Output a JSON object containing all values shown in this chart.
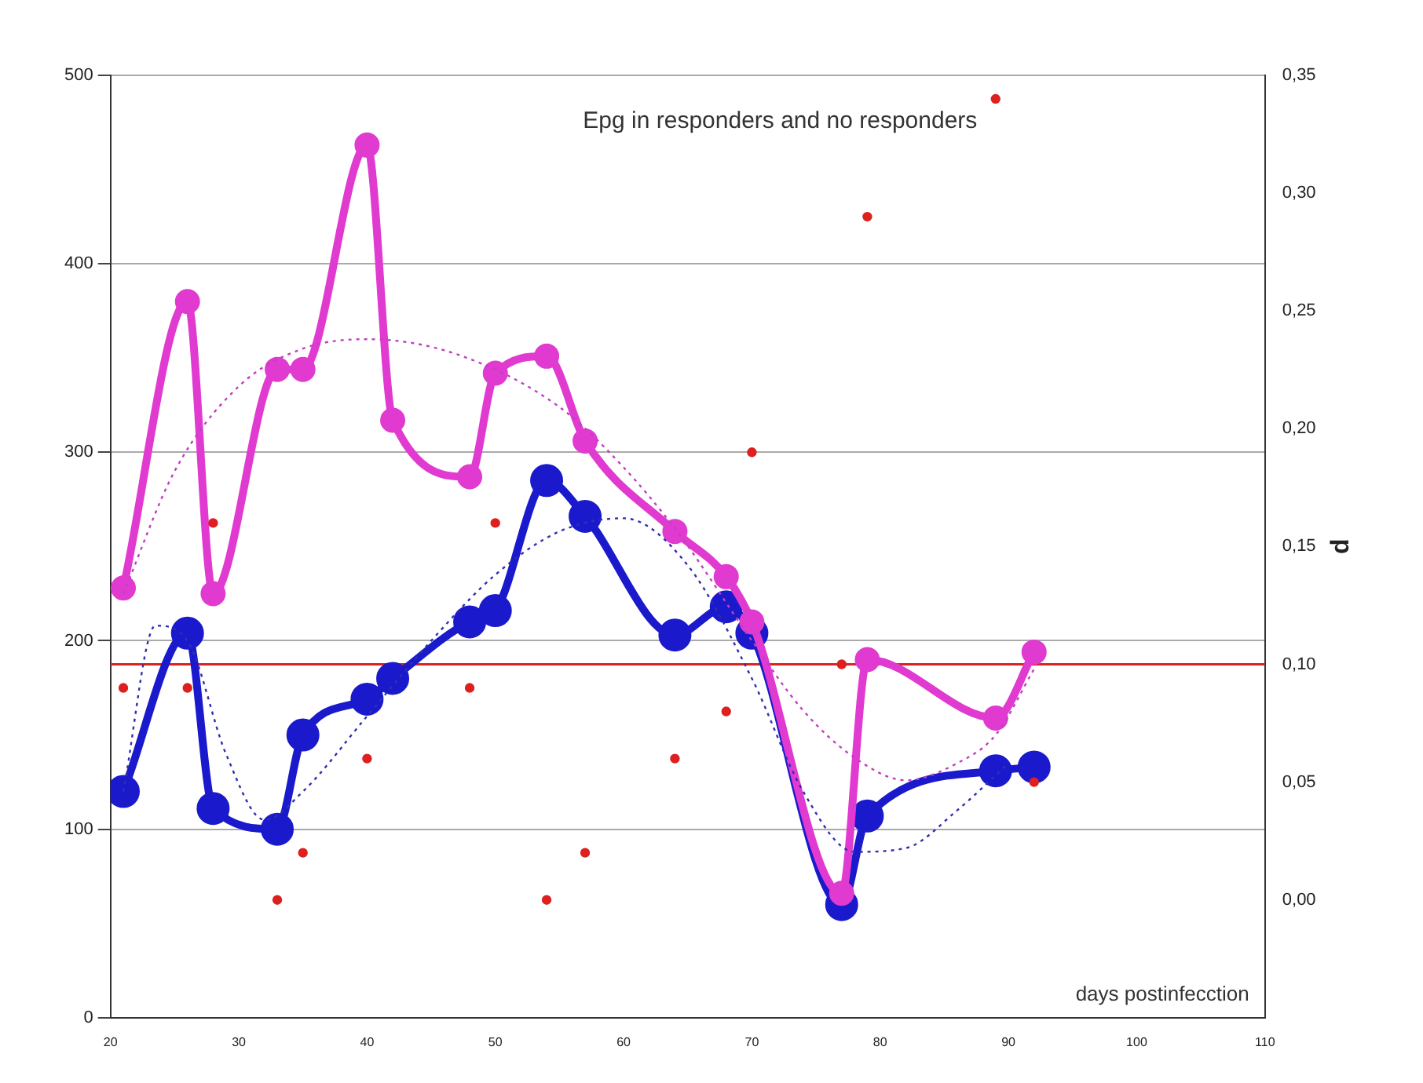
{
  "chart_data": {
    "type": "line",
    "title": "Epg in responders and no responders",
    "y2label": "p",
    "annotations": [
      "days postinfecction"
    ],
    "xlim": [
      20,
      110
    ],
    "xticks": [
      20,
      30,
      40,
      50,
      60,
      70,
      80,
      90,
      100,
      110
    ],
    "ylim": [
      0,
      500
    ],
    "yticks": [
      0,
      100,
      200,
      300,
      400,
      500
    ],
    "y2lim": [
      -0.05,
      0.35
    ],
    "y2ticks": [
      {
        "value": 0,
        "label": "0,00"
      },
      {
        "value": 0.05,
        "label": "0,05"
      },
      {
        "value": 0.1,
        "label": "0,10"
      },
      {
        "value": 0.15,
        "label": "0,15"
      },
      {
        "value": 0.2,
        "label": "0,20"
      },
      {
        "value": 0.25,
        "label": "0,25"
      },
      {
        "value": 0.3,
        "label": "0,30"
      },
      {
        "value": 0.35,
        "label": "0,35"
      }
    ],
    "grid": "y",
    "legend": false,
    "ref_lines": [
      {
        "axis": "y2",
        "value": 0.1,
        "color": "#dd2020"
      }
    ],
    "series": [
      {
        "color": "#1a1acc",
        "marker": "circle",
        "line_style": "solid",
        "x": [
          21,
          26,
          28,
          33,
          35,
          40,
          42,
          48,
          50,
          54,
          57,
          64,
          68,
          70,
          77,
          79,
          89,
          92
        ],
        "values": [
          120,
          204,
          111,
          100,
          150,
          169,
          180,
          210,
          216,
          285,
          266,
          203,
          218,
          204,
          60,
          107,
          131,
          133
        ]
      },
      {
        "color": "#e03ad0",
        "marker": "circle",
        "line_style": "solid",
        "x": [
          21,
          26,
          28,
          33,
          35,
          40,
          42,
          48,
          50,
          54,
          57,
          64,
          68,
          70,
          77,
          79,
          89,
          92
        ],
        "values": [
          228,
          380,
          225,
          344,
          344,
          463,
          317,
          287,
          342,
          351,
          306,
          258,
          234,
          210,
          66,
          190,
          159,
          194
        ]
      },
      {
        "color": "#3030b0",
        "marker": "none",
        "line_style": "dotted",
        "x": [
          21,
          23.5,
          26,
          29,
          32,
          35,
          40,
          45,
          50,
          55,
          60,
          65,
          70,
          74,
          78,
          82,
          86,
          90
        ],
        "values": [
          120,
          208,
          200,
          140,
          105,
          120,
          160,
          200,
          235,
          258,
          265,
          240,
          180,
          120,
          88,
          90,
          110,
          135
        ]
      },
      {
        "color": "#c040c0",
        "marker": "none",
        "line_style": "dotted",
        "x": [
          21,
          25,
          30,
          35,
          40,
          47,
          55,
          60,
          64.5,
          70,
          74,
          78,
          82,
          86,
          89,
          92
        ],
        "values": [
          225,
          290,
          335,
          355,
          360,
          352,
          324,
          292,
          255,
          200,
          163,
          138,
          126,
          135,
          150,
          185
        ]
      },
      {
        "type": "scatter",
        "axis": "y2",
        "color": "#dd2020",
        "marker": "circle",
        "x": [
          21,
          26,
          28,
          33,
          35,
          40,
          48,
          50,
          54,
          57,
          64,
          68,
          70,
          77,
          79,
          89,
          92
        ],
        "values": [
          0.09,
          0.09,
          0.16,
          0.0,
          0.02,
          0.06,
          0.09,
          0.16,
          0.0,
          0.02,
          0.06,
          0.08,
          0.19,
          0.1,
          0.29,
          0.34,
          0.05
        ]
      }
    ]
  }
}
